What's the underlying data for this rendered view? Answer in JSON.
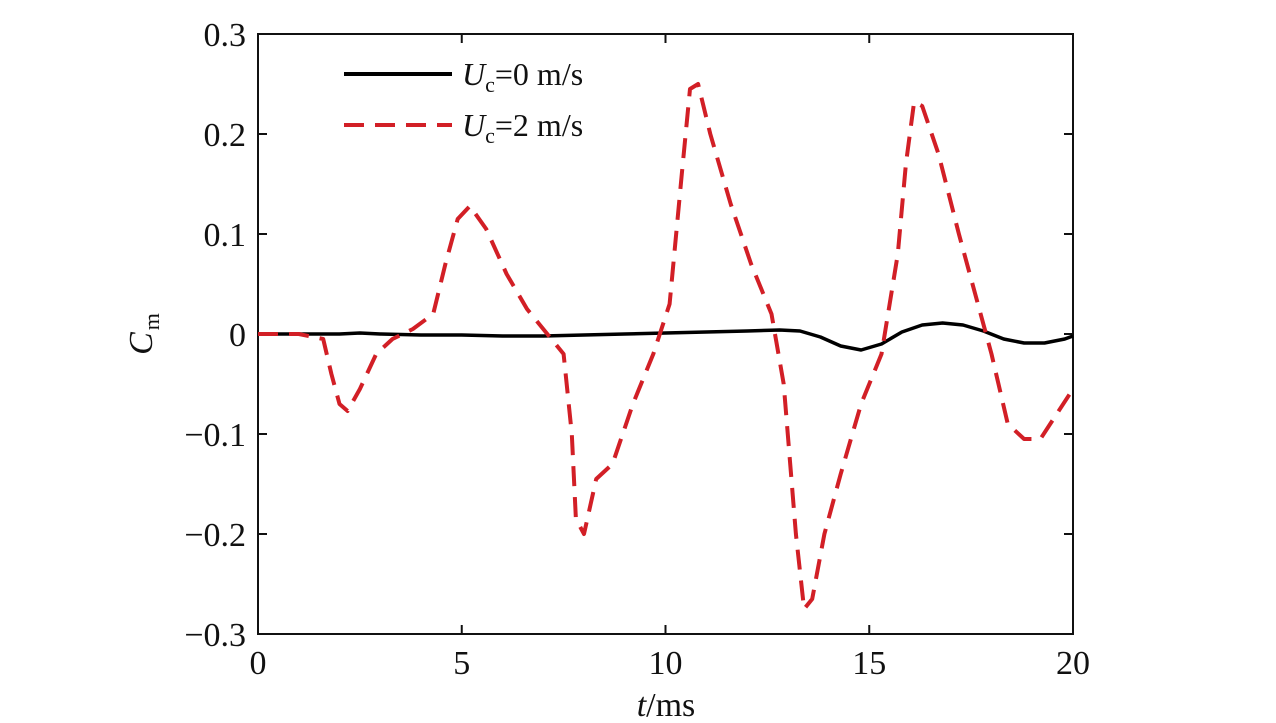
{
  "chart_data": {
    "type": "line",
    "xlabel": {
      "italic": "t",
      "rest": "/ms"
    },
    "ylabel": {
      "main": "C",
      "sub": "m"
    },
    "xlim": [
      0,
      20
    ],
    "ylim": [
      -0.3,
      0.3
    ],
    "xticks": [
      0,
      5,
      10,
      15,
      20
    ],
    "xtick_labels": [
      "0",
      "5",
      "10",
      "15",
      "20"
    ],
    "yticks": [
      0.3,
      0.2,
      0.1,
      0,
      -0.1,
      -0.2,
      -0.3
    ],
    "ytick_labels": [
      "0.3",
      "0.2",
      "0.1",
      "0",
      "−0.1",
      "−0.2",
      "−0.3"
    ],
    "legend_position": "top-left",
    "grid": false,
    "series": [
      {
        "name": {
          "main": "U",
          "sub": "c",
          "rest": "=0 m/s"
        },
        "color": "#000000",
        "dash": "solid",
        "x": [
          0,
          1,
          2,
          2.5,
          3,
          4,
          5,
          6,
          7,
          8,
          9,
          10,
          11,
          12,
          12.8,
          13.3,
          13.8,
          14.3,
          14.8,
          15.3,
          15.8,
          16.3,
          16.8,
          17.3,
          17.8,
          18.3,
          18.8,
          19.3,
          19.8,
          20
        ],
        "y": [
          0,
          0,
          0,
          0.001,
          0,
          -0.001,
          -0.001,
          -0.002,
          -0.002,
          -0.001,
          0,
          0.001,
          0.002,
          0.003,
          0.004,
          0.003,
          -0.003,
          -0.012,
          -0.016,
          -0.01,
          0.002,
          0.009,
          0.011,
          0.009,
          0.003,
          -0.005,
          -0.009,
          -0.009,
          -0.005,
          -0.002
        ]
      },
      {
        "name": {
          "main": "U",
          "sub": "c",
          "rest": "=2 m/s"
        },
        "color": "#d21f26",
        "dash": "dashed",
        "x": [
          0,
          1,
          1.6,
          1.8,
          2.0,
          2.2,
          2.5,
          2.9,
          3.3,
          3.8,
          4.3,
          4.6,
          4.9,
          5.2,
          5.6,
          6.1,
          6.6,
          7.1,
          7.5,
          7.7,
          7.8,
          8.0,
          8.3,
          8.7,
          9.2,
          9.7,
          10.1,
          10.4,
          10.6,
          10.8,
          11.1,
          11.6,
          12.1,
          12.6,
          12.9,
          13.2,
          13.4,
          13.6,
          13.9,
          14.3,
          14.8,
          15.3,
          15.7,
          15.9,
          16.1,
          16.3,
          16.7,
          17.2,
          17.6,
          18.0,
          18.4,
          18.8,
          19.2,
          19.6,
          20
        ],
        "y": [
          0,
          0,
          -0.005,
          -0.04,
          -0.07,
          -0.077,
          -0.055,
          -0.02,
          -0.005,
          0.005,
          0.02,
          0.07,
          0.115,
          0.128,
          0.105,
          0.06,
          0.025,
          0.0,
          -0.02,
          -0.1,
          -0.185,
          -0.2,
          -0.145,
          -0.13,
          -0.07,
          -0.02,
          0.03,
          0.16,
          0.245,
          0.25,
          0.2,
          0.13,
          0.07,
          0.02,
          -0.05,
          -0.2,
          -0.275,
          -0.265,
          -0.2,
          -0.14,
          -0.07,
          -0.02,
          0.08,
          0.17,
          0.232,
          0.228,
          0.18,
          0.1,
          0.04,
          -0.02,
          -0.09,
          -0.105,
          -0.105,
          -0.08,
          -0.055
        ]
      }
    ]
  }
}
